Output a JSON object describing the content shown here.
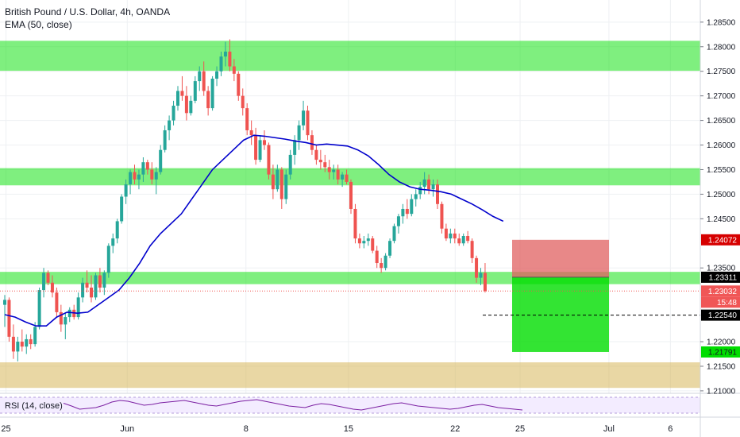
{
  "chart_data": {
    "type": "candlestick",
    "symbol_title": "British Pound / U.S. Dollar, 4h, OANDA",
    "indicator_title": "EMA (50, close)",
    "rsi_title": "RSI (14, close)",
    "ylim": [
      1.2095,
      1.2895
    ],
    "y_ticks": [
      "1.28500",
      "1.28000",
      "1.27500",
      "1.27000",
      "1.26500",
      "1.26000",
      "1.25500",
      "1.25000",
      "1.24500",
      "1.23500",
      "1.22000",
      "1.21500",
      "1.21000"
    ],
    "x_ticks": [
      {
        "label": "25",
        "x": 0.35
      },
      {
        "label": "Jun",
        "x": 7.45
      },
      {
        "label": "8",
        "x": 14.4
      },
      {
        "label": "15",
        "x": 20.4
      },
      {
        "label": "22",
        "x": 26.65
      },
      {
        "label": "25",
        "x": 30.45
      },
      {
        "label": "Jul",
        "x": 35.65
      },
      {
        "label": "6",
        "x": 39.25
      }
    ],
    "candles": [
      [
        1.2275,
        1.2295,
        1.223,
        1.2285
      ],
      [
        1.2285,
        1.229,
        1.22,
        1.221
      ],
      [
        1.221,
        1.2235,
        1.2165,
        1.218
      ],
      [
        1.218,
        1.221,
        1.216,
        1.22
      ],
      [
        1.22,
        1.2225,
        1.218,
        1.219
      ],
      [
        1.219,
        1.2215,
        1.2175,
        1.2205
      ],
      [
        1.2205,
        1.2215,
        1.2185,
        1.2195
      ],
      [
        1.2195,
        1.224,
        1.219,
        1.223
      ],
      [
        1.223,
        1.231,
        1.2225,
        1.2305
      ],
      [
        1.2305,
        1.235,
        1.229,
        1.234
      ],
      [
        1.234,
        1.2345,
        1.2315,
        1.232
      ],
      [
        1.232,
        1.2335,
        1.229,
        1.23
      ],
      [
        1.23,
        1.231,
        1.225,
        1.226
      ],
      [
        1.226,
        1.2275,
        1.222,
        1.2235
      ],
      [
        1.2235,
        1.226,
        1.2205,
        1.225
      ],
      [
        1.225,
        1.227,
        1.224,
        1.2265
      ],
      [
        1.2265,
        1.2275,
        1.2245,
        1.225
      ],
      [
        1.225,
        1.23,
        1.2245,
        1.229
      ],
      [
        1.229,
        1.233,
        1.228,
        1.232
      ],
      [
        1.232,
        1.2345,
        1.23,
        1.231
      ],
      [
        1.231,
        1.2335,
        1.228,
        1.229
      ],
      [
        1.229,
        1.234,
        1.2285,
        1.2335
      ],
      [
        1.2335,
        1.235,
        1.23,
        1.231
      ],
      [
        1.231,
        1.2345,
        1.2295,
        1.234
      ],
      [
        1.234,
        1.24,
        1.233,
        1.2395
      ],
      [
        1.2395,
        1.242,
        1.238,
        1.241
      ],
      [
        1.241,
        1.245,
        1.24,
        1.2445
      ],
      [
        1.2445,
        1.25,
        1.244,
        1.2495
      ],
      [
        1.2495,
        1.253,
        1.248,
        1.252
      ],
      [
        1.252,
        1.255,
        1.25,
        1.2545
      ],
      [
        1.2545,
        1.256,
        1.252,
        1.253
      ],
      [
        1.253,
        1.255,
        1.251,
        1.254
      ],
      [
        1.254,
        1.2575,
        1.2525,
        1.2565
      ],
      [
        1.2565,
        1.257,
        1.254,
        1.255
      ],
      [
        1.255,
        1.2565,
        1.252,
        1.253
      ],
      [
        1.253,
        1.2555,
        1.25,
        1.2545
      ],
      [
        1.2545,
        1.26,
        1.254,
        1.259
      ],
      [
        1.259,
        1.264,
        1.2585,
        1.263
      ],
      [
        1.263,
        1.266,
        1.261,
        1.265
      ],
      [
        1.265,
        1.269,
        1.264,
        1.268
      ],
      [
        1.268,
        1.272,
        1.267,
        1.271
      ],
      [
        1.271,
        1.274,
        1.269,
        1.27
      ],
      [
        1.27,
        1.272,
        1.265,
        1.2665
      ],
      [
        1.2665,
        1.27,
        1.266,
        1.269
      ],
      [
        1.269,
        1.274,
        1.2685,
        1.273
      ],
      [
        1.273,
        1.276,
        1.271,
        1.275
      ],
      [
        1.275,
        1.277,
        1.27,
        1.271
      ],
      [
        1.271,
        1.272,
        1.266,
        1.2675
      ],
      [
        1.2675,
        1.274,
        1.267,
        1.2735
      ],
      [
        1.2735,
        1.276,
        1.272,
        1.275
      ],
      [
        1.275,
        1.279,
        1.274,
        1.278
      ],
      [
        1.278,
        1.281,
        1.276,
        1.279
      ],
      [
        1.279,
        1.2815,
        1.275,
        1.276
      ],
      [
        1.276,
        1.2775,
        1.273,
        1.2745
      ],
      [
        1.2745,
        1.275,
        1.269,
        1.27
      ],
      [
        1.27,
        1.2715,
        1.266,
        1.2675
      ],
      [
        1.2675,
        1.2685,
        1.262,
        1.263
      ],
      [
        1.263,
        1.265,
        1.26,
        1.262
      ],
      [
        1.262,
        1.2635,
        1.256,
        1.257
      ],
      [
        1.257,
        1.262,
        1.2565,
        1.261
      ],
      [
        1.261,
        1.263,
        1.259,
        1.26
      ],
      [
        1.26,
        1.2605,
        1.253,
        1.254
      ],
      [
        1.254,
        1.256,
        1.249,
        1.251
      ],
      [
        1.251,
        1.256,
        1.2505,
        1.255
      ],
      [
        1.255,
        1.2555,
        1.247,
        1.249
      ],
      [
        1.249,
        1.255,
        1.248,
        1.254
      ],
      [
        1.254,
        1.259,
        1.253,
        1.258
      ],
      [
        1.258,
        1.262,
        1.256,
        1.261
      ],
      [
        1.261,
        1.265,
        1.259,
        1.264
      ],
      [
        1.264,
        1.269,
        1.263,
        1.267
      ],
      [
        1.267,
        1.268,
        1.261,
        1.262
      ],
      [
        1.262,
        1.263,
        1.258,
        1.259
      ],
      [
        1.259,
        1.26,
        1.256,
        1.257
      ],
      [
        1.257,
        1.259,
        1.255,
        1.2565
      ],
      [
        1.2565,
        1.258,
        1.2545,
        1.2555
      ],
      [
        1.2555,
        1.257,
        1.253,
        1.2545
      ],
      [
        1.2545,
        1.256,
        1.253,
        1.255
      ],
      [
        1.255,
        1.256,
        1.252,
        1.253
      ],
      [
        1.253,
        1.2545,
        1.2515,
        1.254
      ],
      [
        1.254,
        1.255,
        1.252,
        1.2525
      ],
      [
        1.2525,
        1.253,
        1.246,
        1.247
      ],
      [
        1.247,
        1.248,
        1.24,
        1.241
      ],
      [
        1.241,
        1.242,
        1.239,
        1.24
      ],
      [
        1.24,
        1.2415,
        1.239,
        1.2405
      ],
      [
        1.2405,
        1.242,
        1.2395,
        1.241
      ],
      [
        1.241,
        1.2415,
        1.238,
        1.2385
      ],
      [
        1.2385,
        1.2395,
        1.235,
        1.236
      ],
      [
        1.236,
        1.237,
        1.234,
        1.235
      ],
      [
        1.235,
        1.238,
        1.2345,
        1.2375
      ],
      [
        1.2375,
        1.241,
        1.237,
        1.2405
      ],
      [
        1.2405,
        1.244,
        1.24,
        1.2435
      ],
      [
        1.2435,
        1.246,
        1.242,
        1.2455
      ],
      [
        1.2455,
        1.248,
        1.244,
        1.247
      ],
      [
        1.247,
        1.249,
        1.245,
        1.246
      ],
      [
        1.246,
        1.25,
        1.2455,
        1.249
      ],
      [
        1.249,
        1.251,
        1.2475,
        1.25
      ],
      [
        1.25,
        1.2525,
        1.249,
        1.2515
      ],
      [
        1.2515,
        1.2545,
        1.25,
        1.253
      ],
      [
        1.253,
        1.254,
        1.25,
        1.251
      ],
      [
        1.251,
        1.253,
        1.2495,
        1.252
      ],
      [
        1.252,
        1.253,
        1.247,
        1.248
      ],
      [
        1.248,
        1.2485,
        1.242,
        1.243
      ],
      [
        1.243,
        1.244,
        1.2405,
        1.241
      ],
      [
        1.241,
        1.243,
        1.24,
        1.242
      ],
      [
        1.242,
        1.243,
        1.24,
        1.241
      ],
      [
        1.241,
        1.242,
        1.2395,
        1.24
      ],
      [
        1.24,
        1.242,
        1.2395,
        1.2415
      ],
      [
        1.2415,
        1.2425,
        1.24,
        1.2405
      ],
      [
        1.2405,
        1.241,
        1.236,
        1.237
      ],
      [
        1.237,
        1.2375,
        1.232,
        1.233
      ],
      [
        1.233,
        1.235,
        1.2315,
        1.234
      ],
      [
        1.234,
        1.236,
        1.23,
        1.2303
      ]
    ],
    "ema": [
      [
        0,
        1.2255
      ],
      [
        2,
        1.225
      ],
      [
        4,
        1.224
      ],
      [
        6,
        1.2232
      ],
      [
        8,
        1.2232
      ],
      [
        10,
        1.225
      ],
      [
        12,
        1.226
      ],
      [
        14,
        1.2258
      ],
      [
        16,
        1.226
      ],
      [
        18,
        1.2275
      ],
      [
        20,
        1.229
      ],
      [
        22,
        1.2305
      ],
      [
        24,
        1.233
      ],
      [
        26,
        1.236
      ],
      [
        28,
        1.2395
      ],
      [
        30,
        1.242
      ],
      [
        32,
        1.244
      ],
      [
        34,
        1.246
      ],
      [
        36,
        1.249
      ],
      [
        38,
        1.252
      ],
      [
        40,
        1.255
      ],
      [
        42,
        1.257
      ],
      [
        44,
        1.259
      ],
      [
        46,
        1.261
      ],
      [
        48,
        1.262
      ],
      [
        50,
        1.2618
      ],
      [
        52,
        1.2615
      ],
      [
        54,
        1.2612
      ],
      [
        56,
        1.2608
      ],
      [
        58,
        1.2605
      ],
      [
        60,
        1.26
      ],
      [
        62,
        1.2602
      ],
      [
        64,
        1.26
      ],
      [
        66,
        1.2598
      ],
      [
        68,
        1.259
      ],
      [
        70,
        1.2578
      ],
      [
        72,
        1.256
      ],
      [
        74,
        1.254
      ],
      [
        76,
        1.2525
      ],
      [
        78,
        1.2515
      ],
      [
        80,
        1.251
      ],
      [
        82,
        1.2508
      ],
      [
        84,
        1.2505
      ],
      [
        86,
        1.25
      ],
      [
        88,
        1.249
      ],
      [
        90,
        1.248
      ],
      [
        92,
        1.2468
      ],
      [
        94,
        1.2455
      ],
      [
        96,
        1.2445
      ]
    ],
    "zones": [
      {
        "name": "resistance-top",
        "y0": 1.2751,
        "y1": 1.2812,
        "color": "#00e000"
      },
      {
        "name": "resistance-mid",
        "y0": 1.2518,
        "y1": 1.2553,
        "color": "#00e000"
      },
      {
        "name": "support-mid",
        "y0": 1.2317,
        "y1": 1.2342,
        "color": "#00e000"
      },
      {
        "name": "support-low",
        "y0": 1.2106,
        "y1": 1.2158,
        "color": "#d4b04a"
      }
    ],
    "position": {
      "entry": 1.23311,
      "stop": 1.24072,
      "target": 1.21791,
      "stop_color": "#e06060",
      "target_color": "#00dd00"
    },
    "price_labels": [
      {
        "key": "stop",
        "value": "1.24072",
        "bg": "#d60000",
        "fg": "#ffffff"
      },
      {
        "key": "entry",
        "value": "1.23311",
        "bg": "#000000",
        "fg": "#ffffff"
      },
      {
        "key": "last",
        "value": "1.23032",
        "bg": "#f05656",
        "fg": "#ffffff"
      },
      {
        "key": "countdown",
        "value": "15:48",
        "bg": "#f05656",
        "fg": "#ffffff"
      },
      {
        "key": "hline",
        "value": "1.22540",
        "bg": "#000000",
        "fg": "#ffffff"
      },
      {
        "key": "target",
        "value": "1.21791",
        "bg": "#00dd00",
        "fg": "#131722"
      }
    ],
    "rsi": [
      55,
      48,
      40,
      42,
      44,
      50,
      58,
      62,
      60,
      55,
      50,
      52,
      56,
      58,
      60,
      62,
      58,
      54,
      50,
      48,
      52,
      56,
      60,
      62,
      64,
      60,
      56,
      52,
      48,
      46,
      44,
      50,
      54,
      52,
      48,
      44,
      40,
      38,
      42,
      46,
      50,
      54,
      56,
      52,
      48,
      46,
      44,
      42,
      40,
      42,
      46,
      50,
      52,
      48,
      44,
      42,
      40,
      38
    ],
    "colors": {
      "up": "#26a69a",
      "down": "#ef5350",
      "ema": "#0000cc",
      "grid": "#eef0f3",
      "rsi_band": "#f3ecff",
      "rsi_line": "#7b1fa2"
    }
  }
}
